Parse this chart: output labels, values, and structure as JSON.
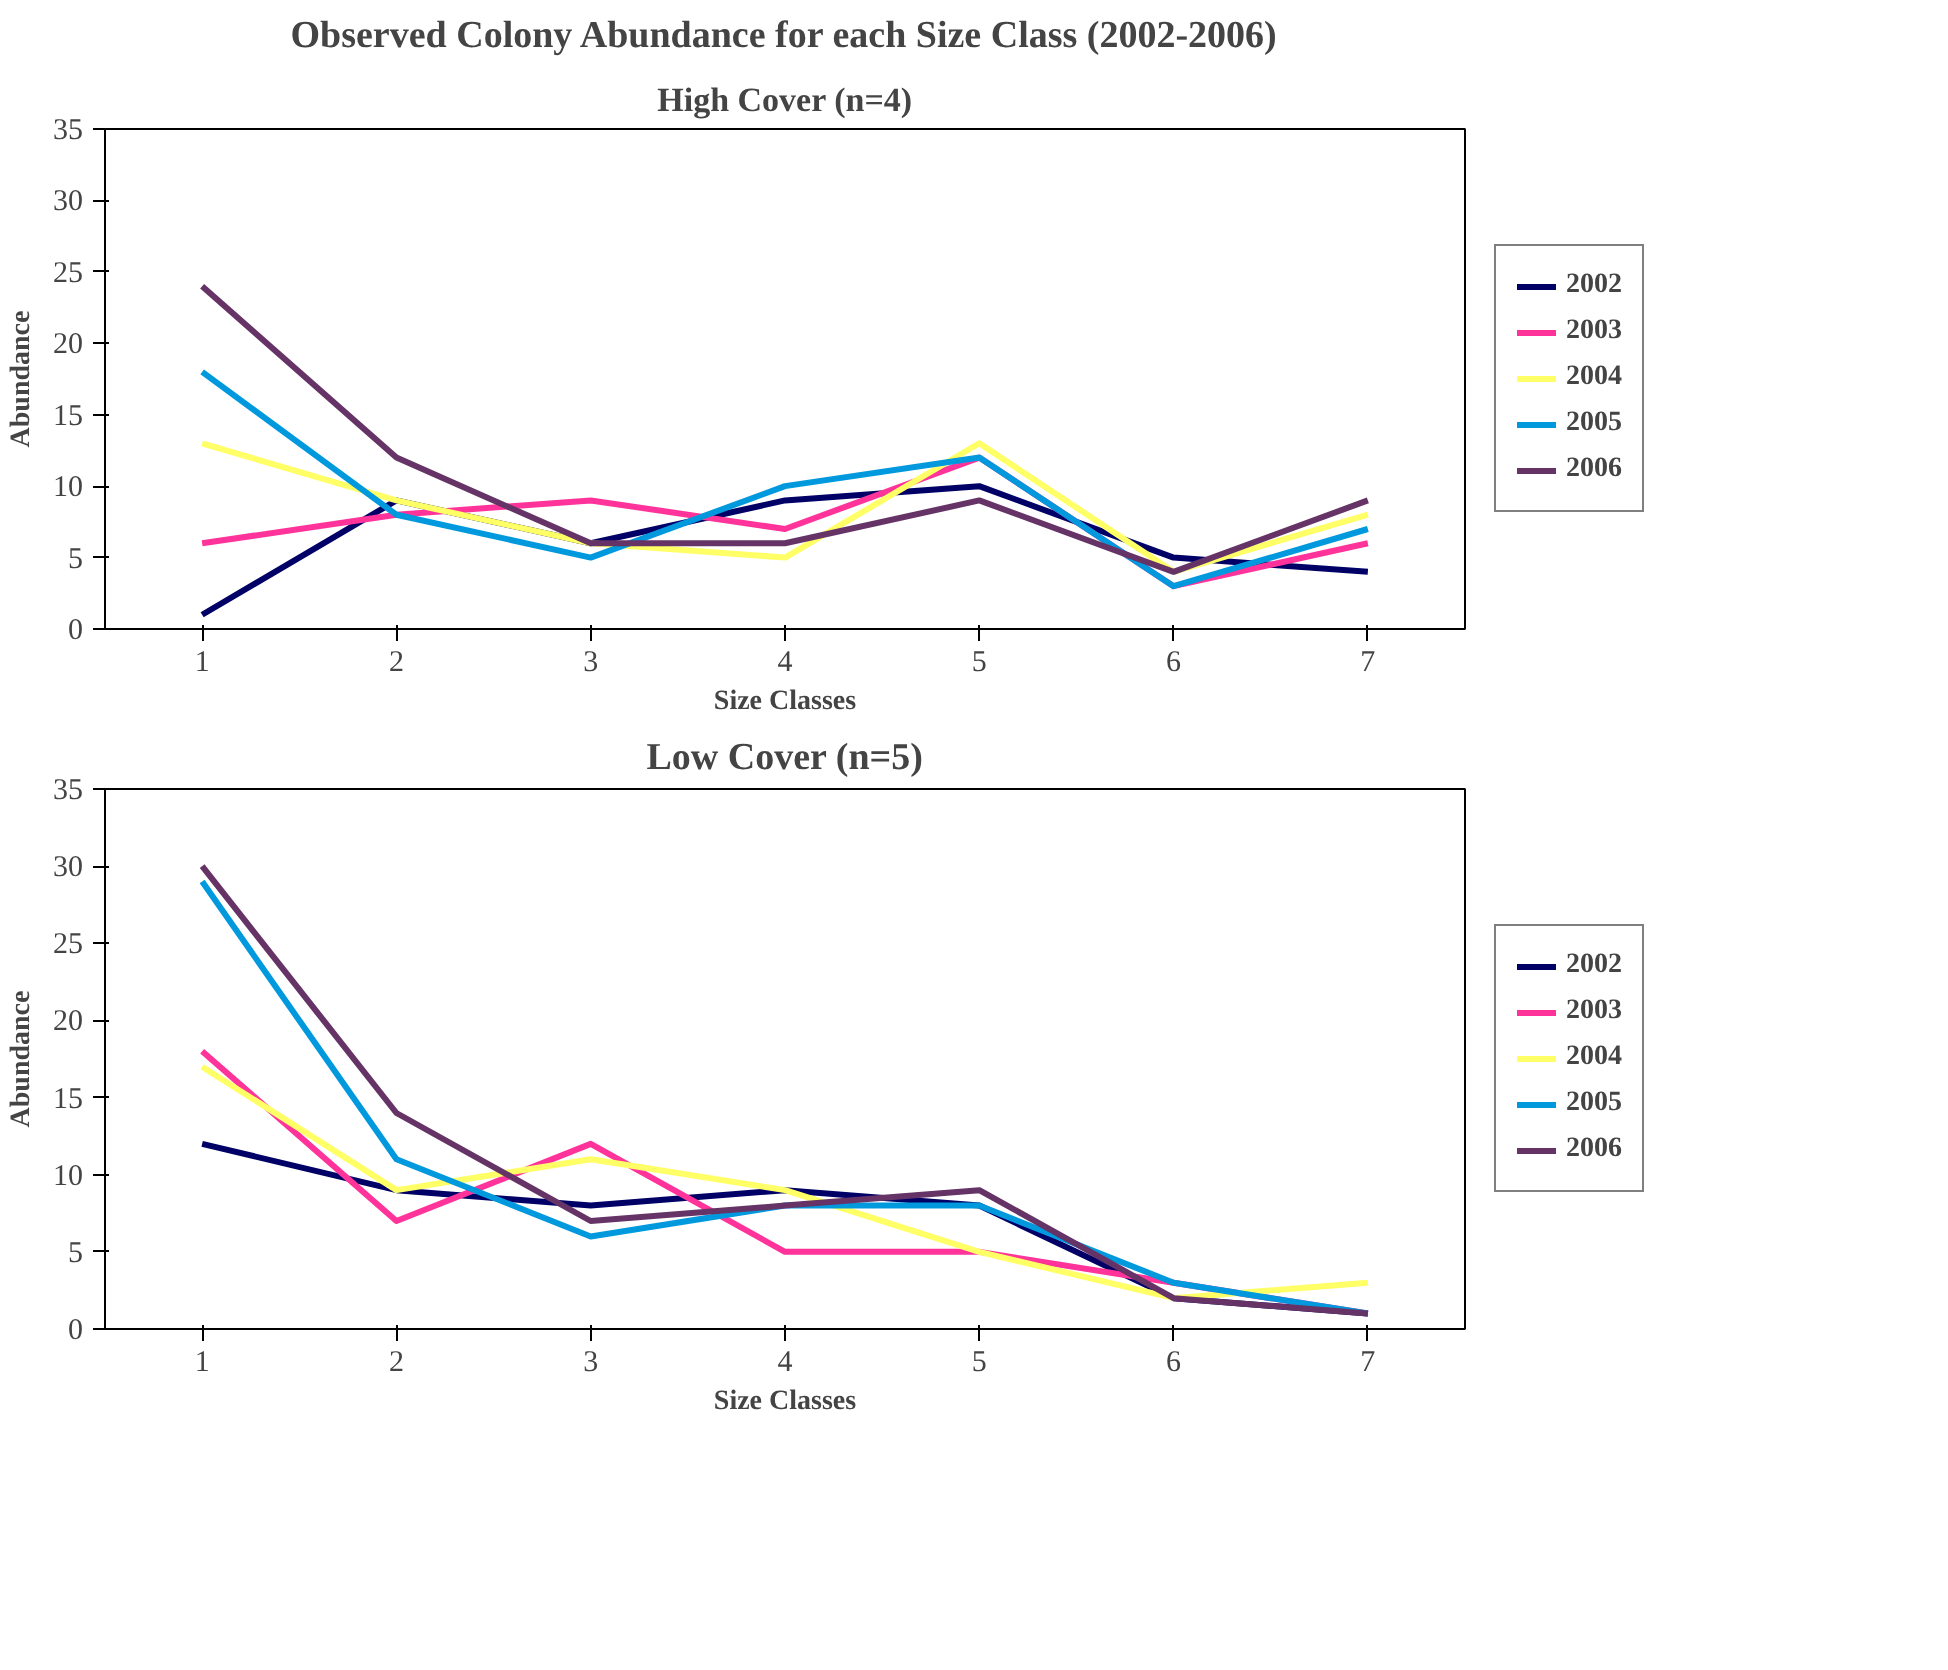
{
  "chart_data": [
    {
      "type": "line",
      "title": "Observed Colony Abundance for each Size Class (2002-2006)",
      "subtitle": "High Cover (n=4)",
      "xlabel": "Size Classes",
      "ylabel": "Abundance",
      "categories": [
        "1",
        "2",
        "3",
        "4",
        "5",
        "6",
        "7"
      ],
      "ylim": [
        0,
        35
      ],
      "yticks": [
        0,
        5,
        10,
        15,
        20,
        25,
        30,
        35
      ],
      "grid": false,
      "legend": "right",
      "marker": "none",
      "line_style": "solid",
      "series": [
        {
          "name": "2002",
          "color": "#000066",
          "values": [
            1,
            9,
            6,
            9,
            10,
            5,
            4
          ]
        },
        {
          "name": "2003",
          "color": "#ff3399",
          "values": [
            6,
            8,
            9,
            7,
            12,
            3,
            6
          ]
        },
        {
          "name": "2004",
          "color": "#ffff66",
          "values": [
            13,
            9,
            6,
            5,
            13,
            4,
            8
          ]
        },
        {
          "name": "2005",
          "color": "#0099dd",
          "values": [
            18,
            8,
            5,
            10,
            12,
            3,
            7
          ]
        },
        {
          "name": "2006",
          "color": "#663366",
          "values": [
            24,
            12,
            6,
            6,
            9,
            4,
            9
          ]
        }
      ]
    },
    {
      "type": "line",
      "title": "Low Cover (n=5)",
      "xlabel": "Size Classes",
      "ylabel": "Abundance",
      "categories": [
        "1",
        "2",
        "3",
        "4",
        "5",
        "6",
        "7"
      ],
      "ylim": [
        0,
        35
      ],
      "yticks": [
        0,
        5,
        10,
        15,
        20,
        25,
        30,
        35
      ],
      "grid": false,
      "legend": "right",
      "marker": "none",
      "line_style": "solid",
      "series": [
        {
          "name": "2002",
          "color": "#000066",
          "values": [
            12,
            9,
            8,
            9,
            8,
            2,
            1
          ]
        },
        {
          "name": "2003",
          "color": "#ff3399",
          "values": [
            18,
            7,
            12,
            5,
            5,
            3,
            1
          ]
        },
        {
          "name": "2004",
          "color": "#ffff66",
          "values": [
            17,
            9,
            11,
            9,
            5,
            2,
            3
          ]
        },
        {
          "name": "2005",
          "color": "#0099dd",
          "values": [
            29,
            11,
            6,
            8,
            8,
            3,
            1
          ]
        },
        {
          "name": "2006",
          "color": "#663366",
          "values": [
            30,
            14,
            7,
            8,
            9,
            2,
            1
          ]
        }
      ]
    }
  ]
}
